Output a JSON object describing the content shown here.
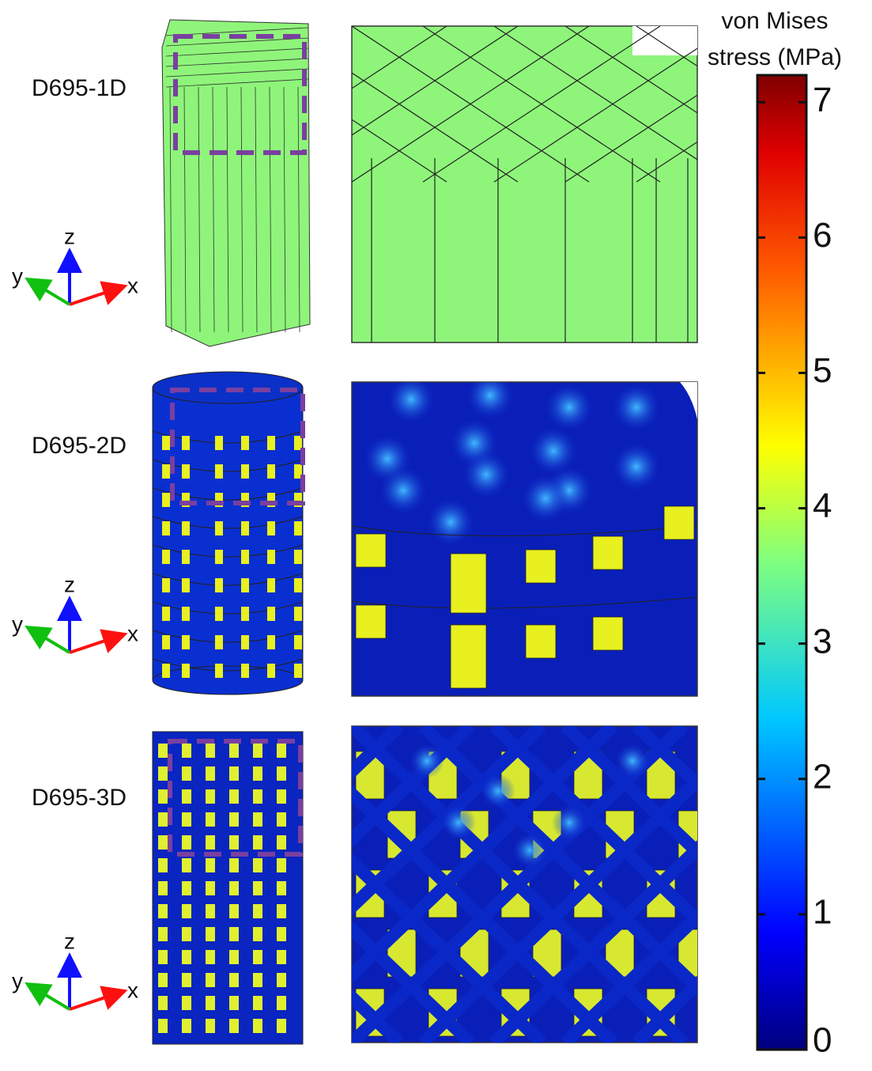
{
  "rows": [
    {
      "label": "D695-1D"
    },
    {
      "label": "D695-2D"
    },
    {
      "label": "D695-3D"
    }
  ],
  "axis_labels": {
    "x": "x",
    "y": "y",
    "z": "z"
  },
  "colorbar": {
    "title_lines": [
      "von Mises",
      "stress (MPa)"
    ],
    "range": [
      0,
      7.2
    ],
    "ticks": [
      0,
      1,
      2,
      3,
      4,
      5,
      6,
      7
    ]
  }
}
